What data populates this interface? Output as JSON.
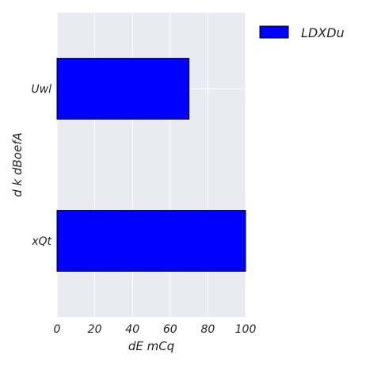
{
  "chart_data": {
    "type": "bar",
    "orientation": "horizontal",
    "title": "",
    "categories": [
      "Uwl",
      "xQt"
    ],
    "series": [
      {
        "name": "LDXDu",
        "values": [
          70,
          100
        ],
        "color": "#0000ff"
      }
    ],
    "xlabel": "dE  mCq",
    "ylabel": "d  k dBoefA",
    "xlim": [
      0,
      100
    ],
    "xticks": [
      0,
      20,
      40,
      60,
      80,
      100
    ],
    "grid": true,
    "legend_position": "outside-top-right",
    "style": {
      "plot_background": "#eaeaf2",
      "grid_color": "#ffffff",
      "bar_edge": "#000000"
    }
  }
}
